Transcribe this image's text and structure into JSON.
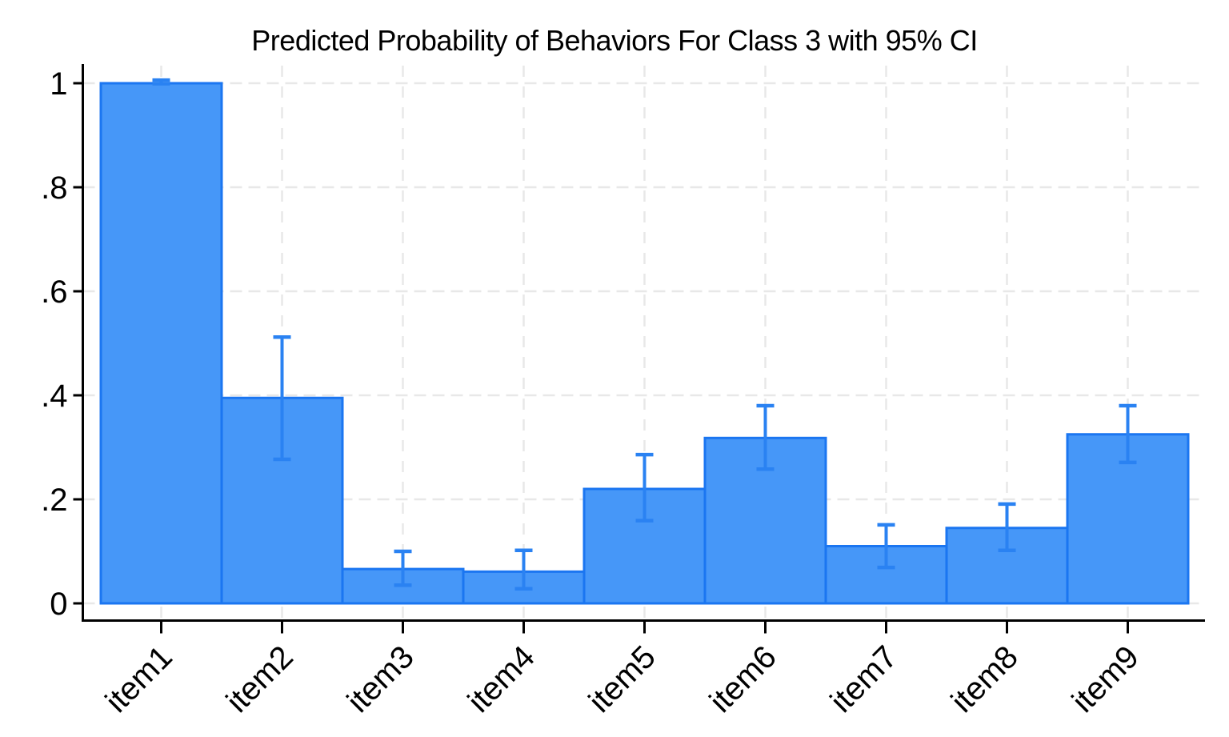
{
  "chart_data": {
    "type": "bar",
    "title": "Predicted Probability of Behaviors For Class 3 with 95% CI",
    "subtitle": "",
    "xlabel": "",
    "ylabel": "",
    "ci_level": "95%",
    "categories": [
      "item1",
      "item2",
      "item3",
      "item4",
      "item5",
      "item6",
      "item7",
      "item8",
      "item9"
    ],
    "values": [
      1.0,
      0.395,
      0.066,
      0.061,
      0.22,
      0.318,
      0.11,
      0.145,
      0.325
    ],
    "ci_lower": [
      0.999,
      0.277,
      0.035,
      0.028,
      0.159,
      0.258,
      0.069,
      0.102,
      0.271
    ],
    "ci_upper": [
      1.006,
      0.512,
      0.1,
      0.102,
      0.286,
      0.38,
      0.151,
      0.191,
      0.38
    ],
    "ylim": [
      0,
      1
    ],
    "yticks": [
      0,
      0.2,
      0.4,
      0.6,
      0.8,
      1
    ],
    "ytick_labels": [
      "0",
      ".2",
      ".4",
      ".6",
      ".8",
      "1"
    ],
    "grid": {
      "horizontal": true,
      "vertical": true,
      "style": "dashed"
    },
    "legend_position": "none",
    "colors": {
      "bar_fill": "#4697f8",
      "bar_border": "#1b76f1",
      "error_bar": "#2a82f2",
      "gridline": "#e8e8e8",
      "axis": "#000000",
      "text": "#000000",
      "background": "#ffffff"
    }
  }
}
